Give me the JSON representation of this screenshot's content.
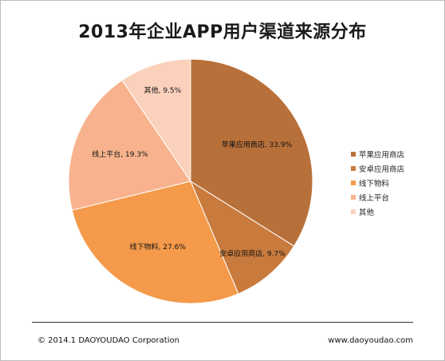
{
  "title": "2013年企业APP用户渠道来源分布",
  "chart_data": {
    "type": "pie",
    "title": "2013年企业APP用户渠道来源分布",
    "slices": [
      {
        "name": "苹果应用商店",
        "value": 33.9,
        "label": "苹果应用商店, 33.9%",
        "color": "#B8703A"
      },
      {
        "name": "安卓应用商店",
        "value": 9.7,
        "label": "安卓应用商店, 9.7%",
        "color": "#C97B3D"
      },
      {
        "name": "线下物料",
        "value": 27.6,
        "label": "线下物料, 27.6%",
        "color": "#F49A4A"
      },
      {
        "name": "线上平台",
        "value": 19.3,
        "label": "线上平台, 19.3%",
        "color": "#F8B38E"
      },
      {
        "name": "其他",
        "value": 9.5,
        "label": "其他, 9.5%",
        "color": "#FBD1BC"
      }
    ],
    "legend_position": "right"
  },
  "footer": {
    "copyright": "© 2014.1 DAOYOUDAO Corporation",
    "website": "www.daoyoudao.com"
  }
}
